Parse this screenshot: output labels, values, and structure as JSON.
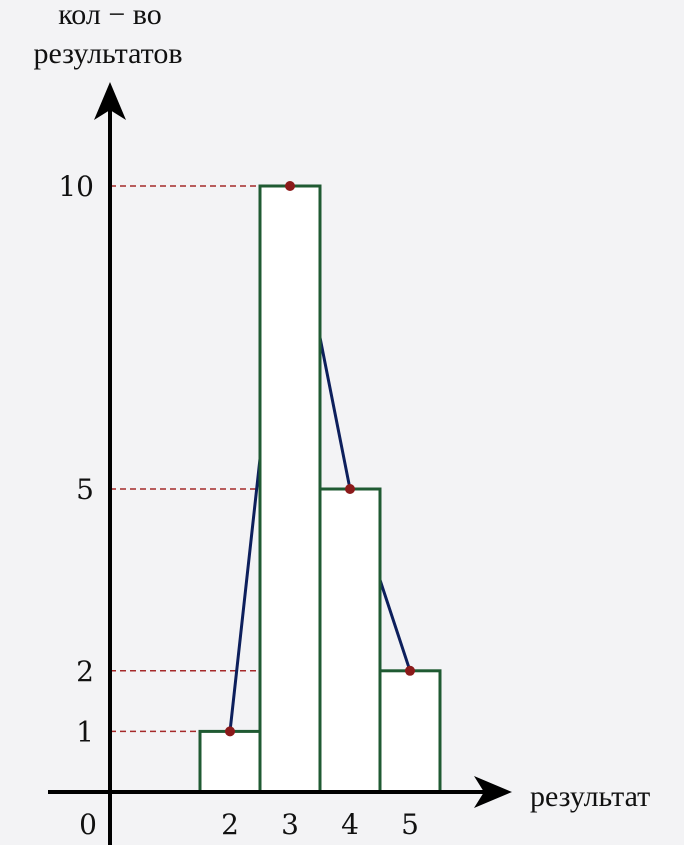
{
  "chart_data": {
    "type": "bar",
    "categories": [
      "2",
      "3",
      "4",
      "5"
    ],
    "values": [
      1,
      10,
      5,
      2
    ],
    "polyline": [
      [
        2,
        1
      ],
      [
        3,
        10
      ],
      [
        4,
        5
      ],
      [
        5,
        2
      ]
    ],
    "ytick_labels": [
      "1",
      "2",
      "5",
      "10"
    ],
    "ytick_values": [
      1,
      2,
      5,
      10
    ],
    "origin_label": "0",
    "ylabel_lines": [
      "кол − во",
      "результатов"
    ],
    "xlabel": "результат",
    "ylim": [
      0,
      10
    ],
    "bar_fill": "#ffffff",
    "bar_stroke": "#1f5a32",
    "line_color": "#0d1f5c",
    "marker_color": "#8b1a1a",
    "guide_color": "#a52a2a",
    "grid": false
  }
}
